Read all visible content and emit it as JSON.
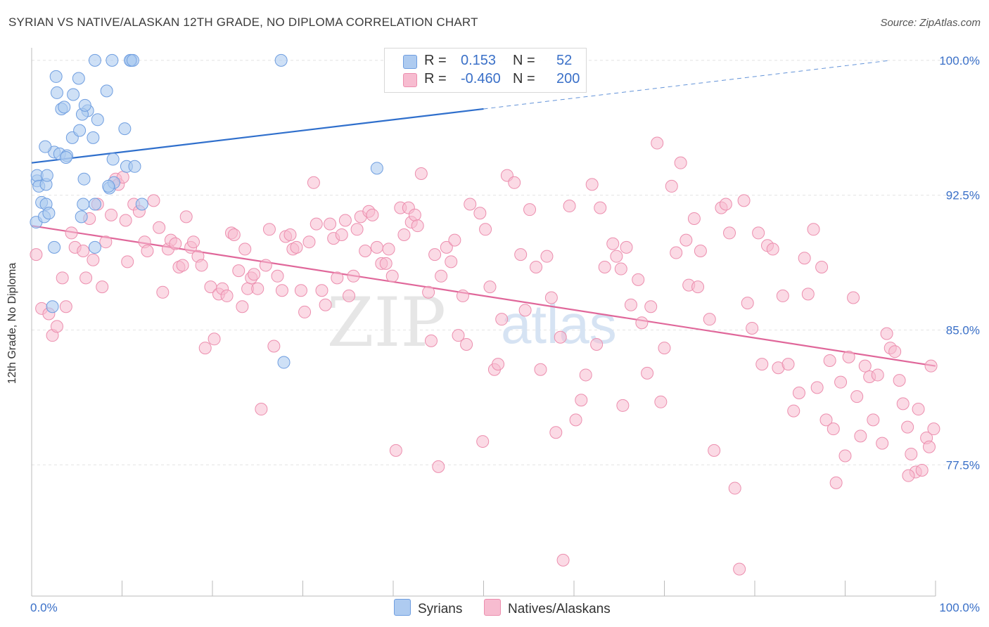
{
  "title": "SYRIAN VS NATIVE/ALASKAN 12TH GRADE, NO DIPLOMA CORRELATION CHART",
  "source": "Source: ZipAtlas.com",
  "watermark": {
    "zip": "ZIP",
    "atlas": "atlas"
  },
  "legend": {
    "row1": {
      "r_label": "R =",
      "r_value": "0.153",
      "n_label": "N =",
      "n_value": "52"
    },
    "row2": {
      "r_label": "R =",
      "r_value": "-0.460",
      "n_label": "N =",
      "n_value": "200"
    }
  },
  "bottom_legend": {
    "series1": "Syrians",
    "series2": "Natives/Alaskans"
  },
  "colors": {
    "syrians_fill": "#aecbf0",
    "syrians_stroke": "#6f9ee0",
    "syrians_line": "#2f6fcc",
    "natives_fill": "#f7bcd0",
    "natives_stroke": "#ec8eae",
    "natives_line": "#e0679a",
    "axis_label": "#3a70c8",
    "grid": "#e4e4e4"
  },
  "chart_data": {
    "type": "scatter",
    "title": "SYRIAN VS NATIVE/ALASKAN 12TH GRADE, NO DIPLOMA CORRELATION CHART",
    "xlabel": "",
    "ylabel": "12th Grade, No Diploma",
    "xlim": [
      0,
      100
    ],
    "ylim": [
      70.2,
      100.7
    ],
    "x_tick_labels": [
      "0.0%",
      "100.0%"
    ],
    "y_ticks": [
      100,
      92.5,
      85,
      77.5
    ],
    "y_tick_labels": [
      "100.0%",
      "92.5%",
      "85.0%",
      "77.5%"
    ],
    "grid": true,
    "series": [
      {
        "name": "Syrians",
        "R": 0.153,
        "N": 52,
        "trend": {
          "x": [
            0,
            50
          ],
          "y": [
            94.3,
            97.3
          ],
          "dashed_to": [
            95,
            100.0
          ]
        },
        "points": [
          [
            0.5,
            91.0
          ],
          [
            0.6,
            93.3
          ],
          [
            0.6,
            93.6
          ],
          [
            0.8,
            93.0
          ],
          [
            1.1,
            92.1
          ],
          [
            1.4,
            91.3
          ],
          [
            1.6,
            93.1
          ],
          [
            1.7,
            93.6
          ],
          [
            1.6,
            92.0
          ],
          [
            1.9,
            91.5
          ],
          [
            2.3,
            86.3
          ],
          [
            2.5,
            89.6
          ],
          [
            2.5,
            94.9
          ],
          [
            1.5,
            95.2
          ],
          [
            3.1,
            94.8
          ],
          [
            3.9,
            94.7
          ],
          [
            3.8,
            94.6
          ],
          [
            2.7,
            99.1
          ],
          [
            2.8,
            98.2
          ],
          [
            3.3,
            97.3
          ],
          [
            3.6,
            97.4
          ],
          [
            4.5,
            95.7
          ],
          [
            4.6,
            98.1
          ],
          [
            5.2,
            99.0
          ],
          [
            5.3,
            96.1
          ],
          [
            5.5,
            91.3
          ],
          [
            5.8,
            93.4
          ],
          [
            5.7,
            92.0
          ],
          [
            6.2,
            97.2
          ],
          [
            5.6,
            97.0
          ],
          [
            5.9,
            97.5
          ],
          [
            6.8,
            95.7
          ],
          [
            7.0,
            89.6
          ],
          [
            7.0,
            100.0
          ],
          [
            7.3,
            96.7
          ],
          [
            8.3,
            98.3
          ],
          [
            8.6,
            92.9
          ],
          [
            8.9,
            100.0
          ],
          [
            9.0,
            94.5
          ],
          [
            9.1,
            93.2
          ],
          [
            10.3,
            96.2
          ],
          [
            10.5,
            94.1
          ],
          [
            11.4,
            94.1
          ],
          [
            11.0,
            100.0
          ],
          [
            10.9,
            100.0
          ],
          [
            11.2,
            100.0
          ],
          [
            27.6,
            100.0
          ],
          [
            27.9,
            83.2
          ],
          [
            38.2,
            94.0
          ],
          [
            7.0,
            92.0
          ],
          [
            8.5,
            93.0
          ],
          [
            12.2,
            92.0
          ]
        ]
      },
      {
        "name": "Natives/Alaskans",
        "R": -0.46,
        "N": 200,
        "trend": {
          "x": [
            0,
            100
          ],
          "y": [
            90.8,
            83.0
          ]
        },
        "points": [
          [
            0.5,
            89.2
          ],
          [
            1.1,
            86.2
          ],
          [
            1.9,
            85.9
          ],
          [
            2.3,
            84.7
          ],
          [
            2.8,
            85.2
          ],
          [
            3.4,
            87.9
          ],
          [
            3.8,
            86.3
          ],
          [
            4.4,
            90.4
          ],
          [
            4.8,
            89.6
          ],
          [
            5.7,
            89.4
          ],
          [
            6.0,
            87.9
          ],
          [
            6.4,
            91.2
          ],
          [
            6.8,
            88.9
          ],
          [
            7.3,
            92.0
          ],
          [
            7.8,
            87.4
          ],
          [
            8.2,
            89.9
          ],
          [
            8.8,
            91.4
          ],
          [
            9.3,
            93.4
          ],
          [
            9.6,
            93.1
          ],
          [
            10.1,
            93.5
          ],
          [
            10.4,
            91.1
          ],
          [
            10.6,
            88.8
          ],
          [
            11.3,
            92.0
          ],
          [
            11.9,
            91.6
          ],
          [
            12.5,
            89.9
          ],
          [
            12.8,
            89.4
          ],
          [
            13.5,
            92.2
          ],
          [
            14.1,
            90.7
          ],
          [
            14.5,
            87.1
          ],
          [
            15.1,
            89.5
          ],
          [
            15.4,
            90.0
          ],
          [
            15.9,
            89.8
          ],
          [
            16.3,
            88.5
          ],
          [
            16.7,
            88.6
          ],
          [
            17.1,
            91.3
          ],
          [
            17.6,
            89.6
          ],
          [
            17.9,
            89.9
          ],
          [
            18.4,
            89.1
          ],
          [
            18.8,
            88.6
          ],
          [
            19.2,
            84.0
          ],
          [
            19.8,
            87.4
          ],
          [
            20.2,
            84.5
          ],
          [
            20.7,
            87.0
          ],
          [
            21.1,
            87.3
          ],
          [
            21.6,
            86.9
          ],
          [
            22.1,
            90.4
          ],
          [
            22.4,
            90.3
          ],
          [
            22.9,
            88.3
          ],
          [
            23.3,
            86.3
          ],
          [
            23.6,
            89.5
          ],
          [
            23.9,
            87.3
          ],
          [
            24.3,
            87.9
          ],
          [
            24.6,
            88.1
          ],
          [
            25.0,
            87.3
          ],
          [
            25.4,
            80.6
          ],
          [
            25.9,
            88.6
          ],
          [
            26.3,
            90.6
          ],
          [
            26.8,
            84.1
          ],
          [
            27.2,
            88.0
          ],
          [
            27.7,
            87.2
          ],
          [
            28.1,
            90.2
          ],
          [
            28.6,
            90.3
          ],
          [
            28.9,
            89.5
          ],
          [
            29.3,
            89.6
          ],
          [
            29.8,
            87.2
          ],
          [
            30.2,
            86.0
          ],
          [
            30.7,
            89.9
          ],
          [
            31.2,
            93.2
          ],
          [
            31.5,
            90.9
          ],
          [
            32.1,
            87.2
          ],
          [
            32.5,
            86.4
          ],
          [
            33.0,
            90.9
          ],
          [
            33.4,
            90.1
          ],
          [
            33.8,
            87.9
          ],
          [
            34.3,
            90.3
          ],
          [
            34.7,
            91.1
          ],
          [
            35.1,
            86.9
          ],
          [
            35.6,
            88.0
          ],
          [
            36.0,
            90.6
          ],
          [
            36.4,
            91.3
          ],
          [
            36.9,
            89.4
          ],
          [
            37.3,
            91.6
          ],
          [
            37.7,
            91.4
          ],
          [
            38.2,
            89.6
          ],
          [
            38.7,
            88.7
          ],
          [
            39.2,
            88.7
          ],
          [
            39.5,
            89.5
          ],
          [
            39.9,
            88.0
          ],
          [
            40.3,
            78.3
          ],
          [
            40.8,
            91.8
          ],
          [
            41.2,
            90.3
          ],
          [
            41.7,
            91.8
          ],
          [
            42.0,
            91.0
          ],
          [
            42.4,
            91.4
          ],
          [
            42.7,
            90.8
          ],
          [
            43.1,
            93.7
          ],
          [
            43.9,
            87.1
          ],
          [
            44.2,
            84.4
          ],
          [
            44.6,
            89.2
          ],
          [
            45.0,
            77.4
          ],
          [
            45.3,
            88.0
          ],
          [
            45.9,
            89.6
          ],
          [
            46.4,
            88.8
          ],
          [
            46.8,
            90.0
          ],
          [
            47.2,
            84.7
          ],
          [
            47.7,
            86.9
          ],
          [
            48.1,
            84.2
          ],
          [
            48.5,
            92.0
          ],
          [
            49.6,
            91.5
          ],
          [
            49.9,
            78.8
          ],
          [
            50.2,
            90.6
          ],
          [
            50.7,
            87.4
          ],
          [
            51.2,
            82.8
          ],
          [
            51.6,
            83.1
          ],
          [
            52.0,
            85.6
          ],
          [
            52.6,
            93.6
          ],
          [
            53.4,
            93.2
          ],
          [
            54.1,
            89.2
          ],
          [
            54.6,
            86.1
          ],
          [
            55.1,
            91.7
          ],
          [
            55.8,
            88.5
          ],
          [
            56.3,
            82.8
          ],
          [
            57.0,
            89.1
          ],
          [
            57.5,
            86.8
          ],
          [
            58.0,
            79.3
          ],
          [
            58.5,
            84.6
          ],
          [
            58.8,
            72.2
          ],
          [
            59.5,
            91.9
          ],
          [
            60.2,
            80.0
          ],
          [
            60.8,
            81.1
          ],
          [
            61.3,
            82.5
          ],
          [
            62.0,
            93.1
          ],
          [
            62.5,
            84.2
          ],
          [
            62.9,
            91.8
          ],
          [
            63.4,
            88.5
          ],
          [
            64.3,
            89.8
          ],
          [
            64.7,
            89.1
          ],
          [
            65.2,
            88.4
          ],
          [
            65.4,
            80.8
          ],
          [
            65.8,
            89.6
          ],
          [
            66.3,
            86.4
          ],
          [
            67.1,
            87.8
          ],
          [
            67.5,
            85.4
          ],
          [
            68.1,
            82.6
          ],
          [
            68.5,
            86.3
          ],
          [
            69.2,
            95.4
          ],
          [
            69.6,
            81.0
          ],
          [
            70.0,
            84.0
          ],
          [
            70.8,
            93.0
          ],
          [
            71.3,
            89.3
          ],
          [
            71.8,
            94.3
          ],
          [
            72.4,
            90.0
          ],
          [
            72.7,
            87.5
          ],
          [
            73.3,
            91.2
          ],
          [
            73.7,
            87.4
          ],
          [
            74.0,
            89.4
          ],
          [
            75.0,
            85.6
          ],
          [
            75.5,
            78.3
          ],
          [
            76.3,
            91.8
          ],
          [
            76.8,
            92.0
          ],
          [
            77.2,
            90.4
          ],
          [
            77.8,
            76.2
          ],
          [
            78.3,
            71.7
          ],
          [
            78.8,
            92.2
          ],
          [
            79.2,
            86.5
          ],
          [
            79.7,
            85.1
          ],
          [
            80.4,
            90.4
          ],
          [
            80.8,
            83.1
          ],
          [
            81.4,
            89.7
          ],
          [
            82.0,
            89.5
          ],
          [
            82.6,
            82.9
          ],
          [
            83.1,
            86.9
          ],
          [
            83.7,
            83.1
          ],
          [
            84.3,
            80.5
          ],
          [
            84.9,
            81.5
          ],
          [
            85.5,
            89.0
          ],
          [
            85.9,
            87.0
          ],
          [
            86.5,
            90.6
          ],
          [
            86.9,
            81.8
          ],
          [
            87.4,
            88.5
          ],
          [
            87.9,
            80.0
          ],
          [
            88.3,
            83.3
          ],
          [
            88.7,
            79.5
          ],
          [
            89.0,
            76.5
          ],
          [
            89.5,
            82.1
          ],
          [
            90.0,
            78.0
          ],
          [
            90.4,
            83.5
          ],
          [
            90.9,
            86.8
          ],
          [
            91.3,
            81.3
          ],
          [
            91.7,
            79.1
          ],
          [
            92.2,
            83.0
          ],
          [
            92.7,
            82.4
          ],
          [
            93.1,
            80.0
          ],
          [
            93.6,
            82.5
          ],
          [
            94.1,
            78.7
          ],
          [
            94.6,
            84.8
          ],
          [
            95.0,
            84.0
          ],
          [
            95.5,
            83.8
          ],
          [
            96.0,
            82.2
          ],
          [
            96.4,
            80.9
          ],
          [
            96.9,
            79.6
          ],
          [
            97.3,
            78.1
          ],
          [
            97.8,
            77.1
          ],
          [
            98.1,
            80.6
          ],
          [
            98.5,
            77.2
          ],
          [
            99.0,
            79.0
          ],
          [
            99.3,
            78.5
          ],
          [
            99.5,
            83.0
          ],
          [
            99.8,
            79.5
          ],
          [
            97.0,
            76.9
          ]
        ]
      }
    ]
  }
}
